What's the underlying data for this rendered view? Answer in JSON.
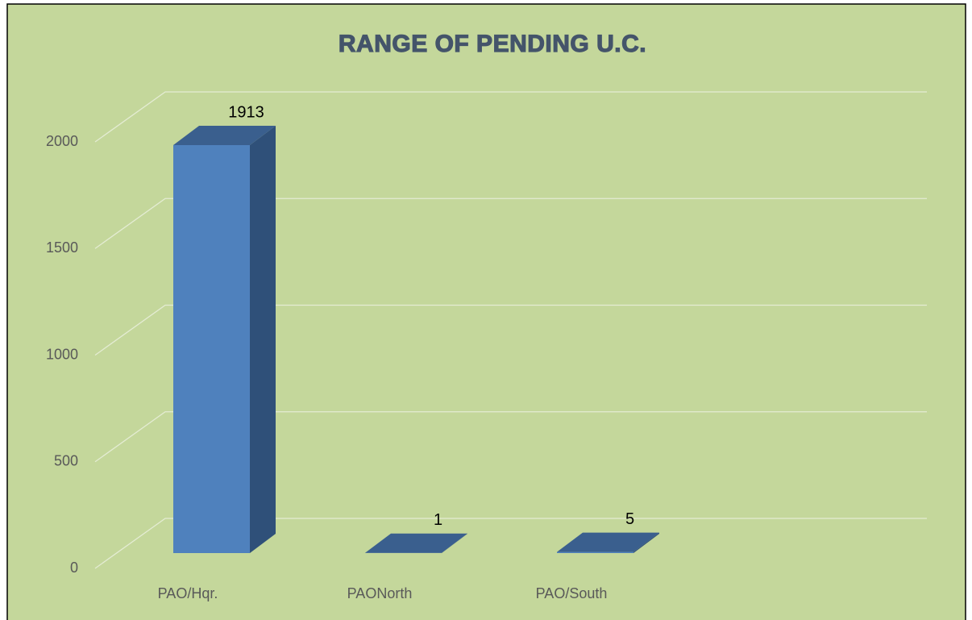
{
  "chart_data": {
    "type": "bar3d",
    "title": "RANGE OF PENDING U.C.",
    "categories": [
      "PAO/Hqr.",
      "PAONorth",
      "PAO/South"
    ],
    "values": [
      1913,
      1,
      5
    ],
    "color": "#4f81bd",
    "ylim": [
      0,
      2000
    ],
    "yticks": [
      0,
      500,
      1000,
      1500,
      2000
    ],
    "grid": true
  }
}
